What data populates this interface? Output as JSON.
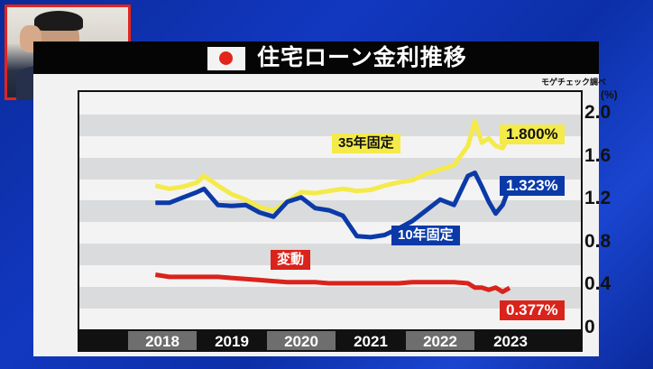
{
  "header": {
    "title": "住宅ローン金利推移",
    "flag": "japan-flag-icon",
    "source": "モゲチェック調べ"
  },
  "inset": {
    "description": "presenter video inset"
  },
  "colors": {
    "fixed35": "#f4ea4a",
    "fixed10": "#0b3aa8",
    "variable": "#d9231b",
    "stripe": "#dadbdc",
    "background": "#1238c0"
  },
  "series_labels": {
    "fixed35": "35年固定",
    "fixed10": "10年固定",
    "variable": "変動"
  },
  "end_values": {
    "fixed35": "1.800%",
    "fixed10": "1.323%",
    "variable": "0.377%"
  },
  "y_axis": {
    "unit": "(%)",
    "ticks": [
      "2.0",
      "1.6",
      "1.2",
      "0.8",
      "0.4",
      "0"
    ]
  },
  "x_axis": {
    "years": [
      "2018",
      "2019",
      "2020",
      "2021",
      "2022",
      "2023"
    ]
  },
  "chart_data": {
    "type": "line",
    "title": "住宅ローン金利推移",
    "source": "モゲチェック調べ",
    "xlabel": "",
    "ylabel": "(%)",
    "ylim": [
      0,
      2.0
    ],
    "yticks": [
      0,
      0.4,
      0.8,
      1.2,
      1.6,
      2.0
    ],
    "categories": [
      "2018",
      "2019",
      "2020",
      "2021",
      "2022",
      "2023"
    ],
    "x": [
      2017.9,
      2018.1,
      2018.3,
      2018.5,
      2018.6,
      2018.8,
      2019.0,
      2019.2,
      2019.4,
      2019.6,
      2019.8,
      2020.0,
      2020.2,
      2020.4,
      2020.6,
      2020.8,
      2021.0,
      2021.2,
      2021.4,
      2021.6,
      2021.8,
      2022.0,
      2022.2,
      2022.4,
      2022.5,
      2022.6,
      2022.7,
      2022.8,
      2022.9,
      2023.0
    ],
    "series": [
      {
        "name": "35年固定",
        "color": "#f4ea4a",
        "end_label": "1.800%",
        "values": [
          1.33,
          1.3,
          1.32,
          1.36,
          1.42,
          1.33,
          1.25,
          1.2,
          1.13,
          1.1,
          1.18,
          1.27,
          1.26,
          1.28,
          1.3,
          1.28,
          1.29,
          1.33,
          1.36,
          1.38,
          1.44,
          1.48,
          1.52,
          1.7,
          1.93,
          1.73,
          1.77,
          1.7,
          1.68,
          1.8
        ]
      },
      {
        "name": "10年固定",
        "color": "#0b3aa8",
        "end_label": "1.323%",
        "values": [
          1.17,
          1.17,
          1.22,
          1.27,
          1.3,
          1.15,
          1.14,
          1.15,
          1.08,
          1.04,
          1.18,
          1.22,
          1.12,
          1.1,
          1.05,
          0.86,
          0.85,
          0.87,
          0.93,
          1.0,
          1.1,
          1.2,
          1.15,
          1.42,
          1.45,
          1.32,
          1.18,
          1.07,
          1.15,
          1.32
        ]
      },
      {
        "name": "変動",
        "color": "#d9231b",
        "end_label": "0.377%",
        "values": [
          0.5,
          0.48,
          0.48,
          0.48,
          0.48,
          0.48,
          0.47,
          0.46,
          0.45,
          0.44,
          0.43,
          0.43,
          0.43,
          0.42,
          0.42,
          0.42,
          0.42,
          0.42,
          0.42,
          0.43,
          0.43,
          0.43,
          0.43,
          0.42,
          0.38,
          0.38,
          0.36,
          0.38,
          0.34,
          0.377
        ]
      }
    ],
    "grid": "alternating horizontal bands every 0.2",
    "legend": "inline labels"
  }
}
